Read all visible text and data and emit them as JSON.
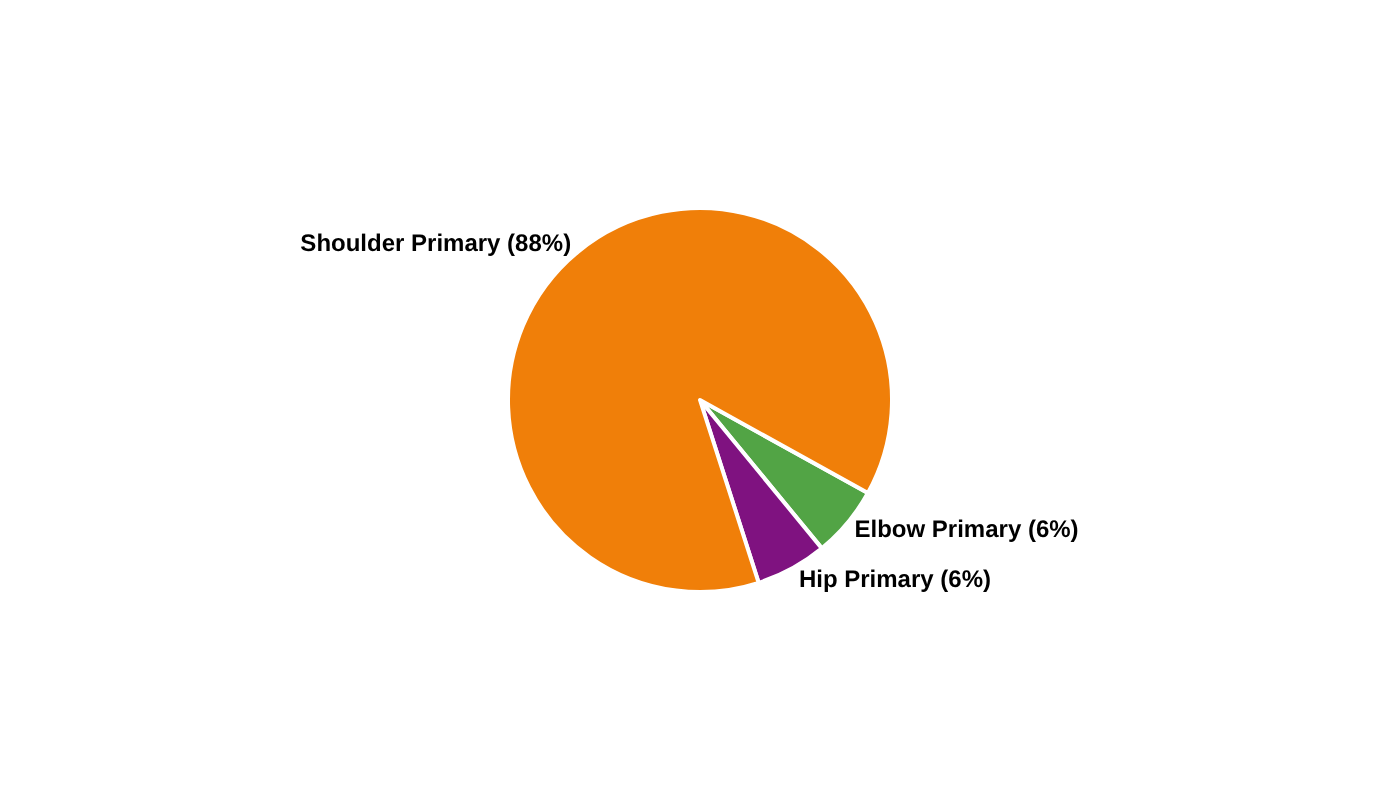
{
  "chart_data": {
    "type": "pie",
    "categories": [
      "Elbow Primary (6%)",
      "Hip Primary (6%)",
      "Shoulder Primary (88%)"
    ],
    "values": [
      6,
      6,
      88
    ],
    "colors": [
      "#52a445",
      "#7f1280",
      "#f07f09"
    ],
    "legend": false
  }
}
